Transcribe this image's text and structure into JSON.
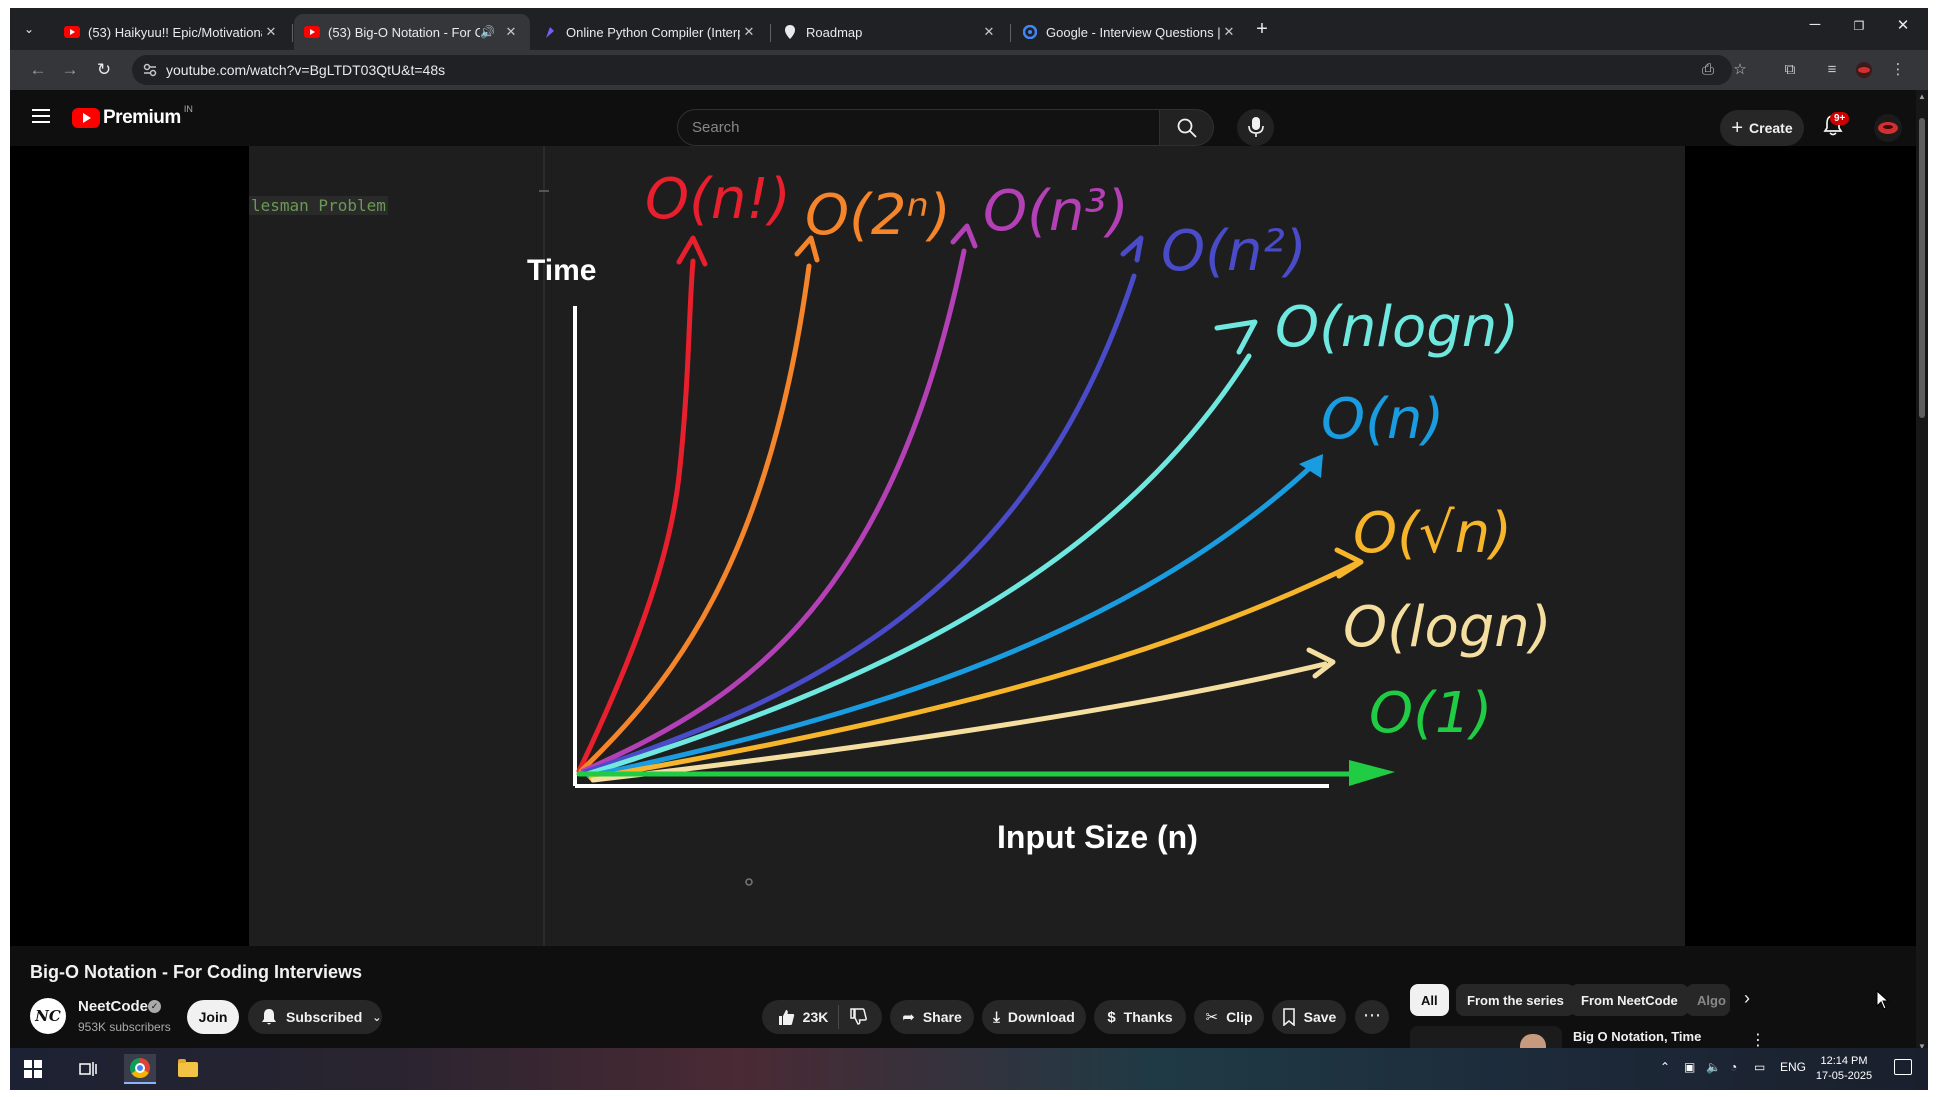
{
  "browser": {
    "tabs": [
      {
        "title": "(53) Haikyuu!! Epic/Motivationa",
        "favicon": "youtube-icon",
        "active": false
      },
      {
        "title": "(53) Big-O Notation - For C",
        "favicon": "youtube-icon",
        "active": true,
        "audio": true
      },
      {
        "title": "Online Python Compiler (Interp",
        "favicon": "programiz-icon",
        "active": false
      },
      {
        "title": "Roadmap",
        "favicon": "roadmap-icon",
        "active": false
      },
      {
        "title": "Google - Interview Questions |",
        "favicon": "google-icon",
        "active": false
      }
    ],
    "url": "youtube.com/watch?v=BgLTDT03QtU&t=48s"
  },
  "youtube": {
    "logo_text": "Premium",
    "region": "IN",
    "search_placeholder": "Search",
    "create_label": "Create",
    "notification_count": "9+"
  },
  "video": {
    "editor_text": "lesman Problem",
    "graph": {
      "y_label": "Time",
      "x_label": "Input Size (n)",
      "curves": [
        {
          "label": "O(n!)",
          "color": "#e8202e"
        },
        {
          "label": "O(2ⁿ)",
          "color": "#f5852a"
        },
        {
          "label": "O(n³)",
          "color": "#b340b5"
        },
        {
          "label": "O(n²)",
          "color": "#4a4bc8"
        },
        {
          "label": "O(nlogn)",
          "color": "#6fe8e0"
        },
        {
          "label": "O(n)",
          "color": "#1a9de0"
        },
        {
          "label": "O(√n)",
          "color": "#f7b52b"
        },
        {
          "label": "O(logn)",
          "color": "#f5dfa0"
        },
        {
          "label": "O(1)",
          "color": "#1fcc44"
        }
      ]
    },
    "title": "Big-O Notation - For Coding Interviews",
    "channel": {
      "name": "NeetCode",
      "avatar_text": "NC",
      "subscribers": "953K subscribers",
      "join_label": "Join",
      "subscribed_label": "Subscribed"
    },
    "actions": {
      "likes": "23K",
      "share": "Share",
      "download": "Download",
      "thanks": "Thanks",
      "clip": "Clip",
      "save": "Save"
    }
  },
  "sidebar": {
    "chips": [
      "All",
      "From the series",
      "From NeetCode",
      "Algo"
    ],
    "recommendation_title": "Big O Notation, Time Complexity | DSA"
  },
  "taskbar": {
    "language": "ENG",
    "time": "12:14 PM",
    "date": "17-05-2025"
  }
}
